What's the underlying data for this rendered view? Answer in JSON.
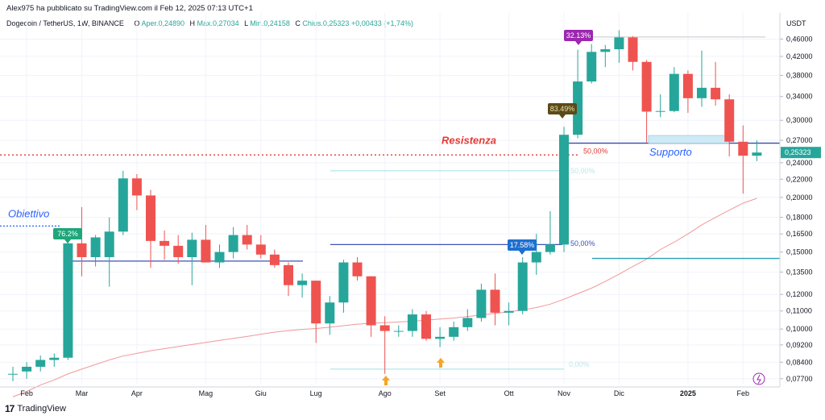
{
  "header": {
    "publisher": "Alex975 ha pubblicato su TradingView.com il Feb 12, 2025 07:13 UTC+1",
    "symbol": "Dogecoin / TetherUS, 1W, BINANCE",
    "open_label": "O",
    "open_text": "Aper.0,24890",
    "high_label": "H",
    "high_text": "Max.0,27034",
    "low_label": "L",
    "low_text": "Min.0,24158",
    "close_label": "C",
    "close_text": "Chius.0,25323",
    "change_text": "+0,00433 (+1,74%)"
  },
  "footer": {
    "logo": "17",
    "brand": "TradingView"
  },
  "colors": {
    "up": "#26a69a",
    "down": "#ef5350",
    "ma": "#f0989a",
    "accent_blue": "#2962ff"
  },
  "chart_data": {
    "type": "candlestick",
    "title": "Dogecoin / TetherUS, 1W, BINANCE",
    "ylabel": "USDT",
    "y_scale": "log",
    "ylim": [
      0.075,
      0.485
    ],
    "ticks": [
      "0,46000",
      "0,42000",
      "0,38000",
      "0,34000",
      "0,30000",
      "0,27000",
      "0,24000",
      "0,22000",
      "0,20000",
      "0,18000",
      "0,16500",
      "0,15000",
      "0,13500",
      "0,12000",
      "0,11000",
      "0,10000",
      "0,09200",
      "0,08400",
      "0,07700"
    ],
    "x_labels": [
      "Feb",
      "Mar",
      "Apr",
      "Mag",
      "Giu",
      "Lug",
      "Ago",
      "Set",
      "Ott",
      "Nov",
      "Dic",
      "2025",
      "Feb"
    ],
    "last_price": "0,25323",
    "candles": [
      {
        "o": 0.079,
        "h": 0.082,
        "l": 0.076,
        "c": 0.079
      },
      {
        "o": 0.08,
        "h": 0.084,
        "l": 0.077,
        "c": 0.082
      },
      {
        "o": 0.082,
        "h": 0.087,
        "l": 0.08,
        "c": 0.085
      },
      {
        "o": 0.085,
        "h": 0.088,
        "l": 0.082,
        "c": 0.086
      },
      {
        "o": 0.086,
        "h": 0.16,
        "l": 0.085,
        "c": 0.157
      },
      {
        "o": 0.157,
        "h": 0.19,
        "l": 0.132,
        "c": 0.146
      },
      {
        "o": 0.146,
        "h": 0.164,
        "l": 0.139,
        "c": 0.162
      },
      {
        "o": 0.146,
        "h": 0.18,
        "l": 0.125,
        "c": 0.167
      },
      {
        "o": 0.167,
        "h": 0.23,
        "l": 0.164,
        "c": 0.221
      },
      {
        "o": 0.221,
        "h": 0.226,
        "l": 0.187,
        "c": 0.202
      },
      {
        "o": 0.202,
        "h": 0.208,
        "l": 0.138,
        "c": 0.159
      },
      {
        "o": 0.159,
        "h": 0.168,
        "l": 0.144,
        "c": 0.155
      },
      {
        "o": 0.155,
        "h": 0.164,
        "l": 0.141,
        "c": 0.146
      },
      {
        "o": 0.146,
        "h": 0.166,
        "l": 0.126,
        "c": 0.16
      },
      {
        "o": 0.16,
        "h": 0.173,
        "l": 0.142,
        "c": 0.142
      },
      {
        "o": 0.142,
        "h": 0.156,
        "l": 0.138,
        "c": 0.15
      },
      {
        "o": 0.15,
        "h": 0.171,
        "l": 0.145,
        "c": 0.164
      },
      {
        "o": 0.164,
        "h": 0.173,
        "l": 0.152,
        "c": 0.156
      },
      {
        "o": 0.156,
        "h": 0.164,
        "l": 0.145,
        "c": 0.148
      },
      {
        "o": 0.148,
        "h": 0.152,
        "l": 0.138,
        "c": 0.14
      },
      {
        "o": 0.14,
        "h": 0.142,
        "l": 0.119,
        "c": 0.126
      },
      {
        "o": 0.126,
        "h": 0.134,
        "l": 0.118,
        "c": 0.129
      },
      {
        "o": 0.129,
        "h": 0.129,
        "l": 0.093,
        "c": 0.103
      },
      {
        "o": 0.103,
        "h": 0.119,
        "l": 0.097,
        "c": 0.115
      },
      {
        "o": 0.115,
        "h": 0.144,
        "l": 0.109,
        "c": 0.142
      },
      {
        "o": 0.142,
        "h": 0.146,
        "l": 0.129,
        "c": 0.132
      },
      {
        "o": 0.132,
        "h": 0.132,
        "l": 0.096,
        "c": 0.102
      },
      {
        "o": 0.102,
        "h": 0.107,
        "l": 0.079,
        "c": 0.099
      },
      {
        "o": 0.099,
        "h": 0.102,
        "l": 0.096,
        "c": 0.099
      },
      {
        "o": 0.099,
        "h": 0.111,
        "l": 0.096,
        "c": 0.108
      },
      {
        "o": 0.108,
        "h": 0.11,
        "l": 0.094,
        "c": 0.095
      },
      {
        "o": 0.095,
        "h": 0.101,
        "l": 0.091,
        "c": 0.096
      },
      {
        "o": 0.096,
        "h": 0.104,
        "l": 0.094,
        "c": 0.101
      },
      {
        "o": 0.101,
        "h": 0.111,
        "l": 0.099,
        "c": 0.106
      },
      {
        "o": 0.106,
        "h": 0.127,
        "l": 0.104,
        "c": 0.123
      },
      {
        "o": 0.123,
        "h": 0.134,
        "l": 0.102,
        "c": 0.109
      },
      {
        "o": 0.109,
        "h": 0.115,
        "l": 0.102,
        "c": 0.11
      },
      {
        "o": 0.11,
        "h": 0.146,
        "l": 0.108,
        "c": 0.142
      },
      {
        "o": 0.142,
        "h": 0.165,
        "l": 0.133,
        "c": 0.15
      },
      {
        "o": 0.15,
        "h": 0.186,
        "l": 0.148,
        "c": 0.156
      },
      {
        "o": 0.156,
        "h": 0.29,
        "l": 0.15,
        "c": 0.278
      },
      {
        "o": 0.278,
        "h": 0.435,
        "l": 0.273,
        "c": 0.368
      },
      {
        "o": 0.368,
        "h": 0.448,
        "l": 0.364,
        "c": 0.43
      },
      {
        "o": 0.43,
        "h": 0.446,
        "l": 0.397,
        "c": 0.436
      },
      {
        "o": 0.436,
        "h": 0.482,
        "l": 0.406,
        "c": 0.464
      },
      {
        "o": 0.464,
        "h": 0.467,
        "l": 0.39,
        "c": 0.408
      },
      {
        "o": 0.408,
        "h": 0.412,
        "l": 0.267,
        "c": 0.314
      },
      {
        "o": 0.314,
        "h": 0.344,
        "l": 0.305,
        "c": 0.315
      },
      {
        "o": 0.315,
        "h": 0.397,
        "l": 0.313,
        "c": 0.383
      },
      {
        "o": 0.383,
        "h": 0.39,
        "l": 0.312,
        "c": 0.337
      },
      {
        "o": 0.337,
        "h": 0.433,
        "l": 0.322,
        "c": 0.356
      },
      {
        "o": 0.356,
        "h": 0.408,
        "l": 0.324,
        "c": 0.335
      },
      {
        "o": 0.335,
        "h": 0.344,
        "l": 0.248,
        "c": 0.268
      },
      {
        "o": 0.268,
        "h": 0.292,
        "l": 0.204,
        "c": 0.249
      },
      {
        "o": 0.249,
        "h": 0.27,
        "l": 0.242,
        "c": 0.2532
      }
    ],
    "ma": [
      0.07,
      0.072,
      0.0745,
      0.0765,
      0.079,
      0.081,
      0.083,
      0.085,
      0.0868,
      0.088,
      0.0892,
      0.0902,
      0.0912,
      0.0922,
      0.0932,
      0.0942,
      0.0952,
      0.0962,
      0.0973,
      0.0984,
      0.0992,
      0.0998,
      0.1003,
      0.101,
      0.1018,
      0.1026,
      0.1031,
      0.1034,
      0.1038,
      0.1042,
      0.1048,
      0.1054,
      0.106,
      0.1068,
      0.1077,
      0.1086,
      0.1095,
      0.1106,
      0.112,
      0.114,
      0.117,
      0.1205,
      0.124,
      0.1285,
      0.1335,
      0.139,
      0.1445,
      0.152,
      0.158,
      0.165,
      0.173,
      0.18,
      0.187,
      0.194,
      0.199
    ],
    "annotations": {
      "resistance_label": "Resistenza",
      "support_label": "Supporto",
      "target_label": "Obiettivo",
      "badges": [
        "76.2%",
        "32.13%",
        "83.49%",
        "17.58%"
      ],
      "fib_labels": [
        "50,00%",
        "50,00%",
        "50,00%",
        "0,00%"
      ]
    }
  }
}
